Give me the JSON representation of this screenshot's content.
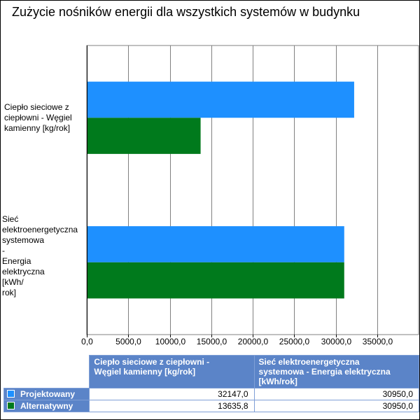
{
  "chart_data": {
    "type": "bar",
    "orientation": "horizontal",
    "title": "Zużycie nośników energii dla wszystkich systemów w budynku",
    "categories": [
      "Ciepło sieciowe z\nciepłowni - Węgiel\nkamienny [kg/rok]",
      "Sieć\nelektroenergetyczna\nsystemowa\n-\nEnergia\nelektryczna\n[kWh/\nrok]"
    ],
    "series": [
      {
        "name": "Projektowany",
        "color": "#1e90ff",
        "values": [
          32147.0,
          30950.0
        ]
      },
      {
        "name": "Alternatywny",
        "color": "#007a1c",
        "values": [
          13635.8,
          30950.0
        ]
      }
    ],
    "xlim": [
      0,
      40000
    ],
    "xticks": [
      "0,0",
      "5000,0",
      "10000,0",
      "15000,0",
      "20000,0",
      "25000,0",
      "30000,0",
      "35000,0"
    ],
    "grid": true,
    "legend": "table"
  },
  "table": {
    "headers": [
      "Ciepło sieciowe z ciepłowni -\nWęgiel kamienny [kg/rok]",
      "Sieć elektroenergetyczna\nsystemowa - Energia elektryczna\n[kWh/rok]"
    ],
    "rows": [
      {
        "series": "Projektowany",
        "color": "#1e90ff",
        "cells": [
          "32147,0",
          "30950,0"
        ]
      },
      {
        "series": "Alternatywny",
        "color": "#007a1c",
        "cells": [
          "13635,8",
          "30950,0"
        ]
      }
    ]
  }
}
